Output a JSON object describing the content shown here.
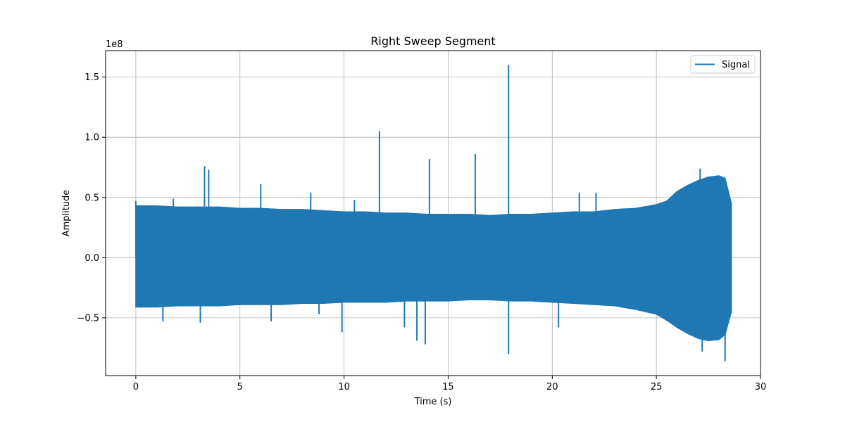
{
  "chart_data": {
    "type": "line",
    "title": "Right Sweep Segment",
    "xlabel": "Time (s)",
    "ylabel": "Amplitude",
    "y_scale_label": "1e8",
    "xlim": [
      -1.45,
      30
    ],
    "ylim": [
      -0.98,
      1.72
    ],
    "x_ticks": [
      0,
      5,
      10,
      15,
      20,
      25,
      30
    ],
    "y_ticks": [
      -0.5,
      0.0,
      0.5,
      1.0,
      1.5
    ],
    "x_tick_labels": [
      "0",
      "5",
      "10",
      "15",
      "20",
      "25",
      "30"
    ],
    "y_tick_labels": [
      "−0.5",
      "0.0",
      "0.5",
      "1.0",
      "1.5"
    ],
    "grid": true,
    "legend_position": "top-right",
    "series": [
      {
        "name": "Signal",
        "color": "#1f77b4",
        "envelope": {
          "x": [
            0,
            1,
            2,
            3,
            4,
            5,
            6,
            7,
            8,
            9,
            10,
            11,
            12,
            13,
            14,
            15,
            16,
            17,
            18,
            19,
            20,
            21,
            22,
            23,
            24,
            25,
            25.5,
            26,
            26.5,
            27,
            27.5,
            28,
            28.3,
            28.6
          ],
          "upper": [
            0.43,
            0.43,
            0.42,
            0.42,
            0.42,
            0.41,
            0.41,
            0.4,
            0.4,
            0.39,
            0.38,
            0.38,
            0.37,
            0.37,
            0.36,
            0.36,
            0.36,
            0.35,
            0.36,
            0.36,
            0.37,
            0.38,
            0.38,
            0.4,
            0.41,
            0.44,
            0.47,
            0.55,
            0.6,
            0.64,
            0.67,
            0.68,
            0.66,
            0.45
          ],
          "lower": [
            -0.41,
            -0.41,
            -0.4,
            -0.4,
            -0.4,
            -0.39,
            -0.39,
            -0.39,
            -0.38,
            -0.38,
            -0.37,
            -0.37,
            -0.37,
            -0.36,
            -0.36,
            -0.36,
            -0.35,
            -0.35,
            -0.36,
            -0.36,
            -0.37,
            -0.38,
            -0.39,
            -0.4,
            -0.43,
            -0.47,
            -0.52,
            -0.58,
            -0.63,
            -0.67,
            -0.69,
            -0.68,
            -0.64,
            -0.45
          ]
        },
        "spikes": [
          {
            "x": 0.0,
            "y": 0.47
          },
          {
            "x": 1.8,
            "y": 0.49
          },
          {
            "x": 3.3,
            "y": 0.76
          },
          {
            "x": 3.5,
            "y": 0.73
          },
          {
            "x": 6.0,
            "y": 0.61
          },
          {
            "x": 8.4,
            "y": 0.54
          },
          {
            "x": 10.5,
            "y": 0.48
          },
          {
            "x": 11.7,
            "y": 1.05
          },
          {
            "x": 14.1,
            "y": 0.82
          },
          {
            "x": 16.3,
            "y": 0.86
          },
          {
            "x": 17.9,
            "y": 1.6
          },
          {
            "x": 21.3,
            "y": 0.54
          },
          {
            "x": 22.1,
            "y": 0.54
          },
          {
            "x": 27.1,
            "y": 0.74
          },
          {
            "x": 1.3,
            "y": -0.53
          },
          {
            "x": 3.1,
            "y": -0.54
          },
          {
            "x": 6.5,
            "y": -0.53
          },
          {
            "x": 8.8,
            "y": -0.47
          },
          {
            "x": 9.9,
            "y": -0.62
          },
          {
            "x": 12.9,
            "y": -0.58
          },
          {
            "x": 13.5,
            "y": -0.69
          },
          {
            "x": 13.9,
            "y": -0.72
          },
          {
            "x": 17.9,
            "y": -0.8
          },
          {
            "x": 20.3,
            "y": -0.58
          },
          {
            "x": 27.2,
            "y": -0.78
          },
          {
            "x": 28.3,
            "y": -0.86
          }
        ]
      }
    ]
  }
}
